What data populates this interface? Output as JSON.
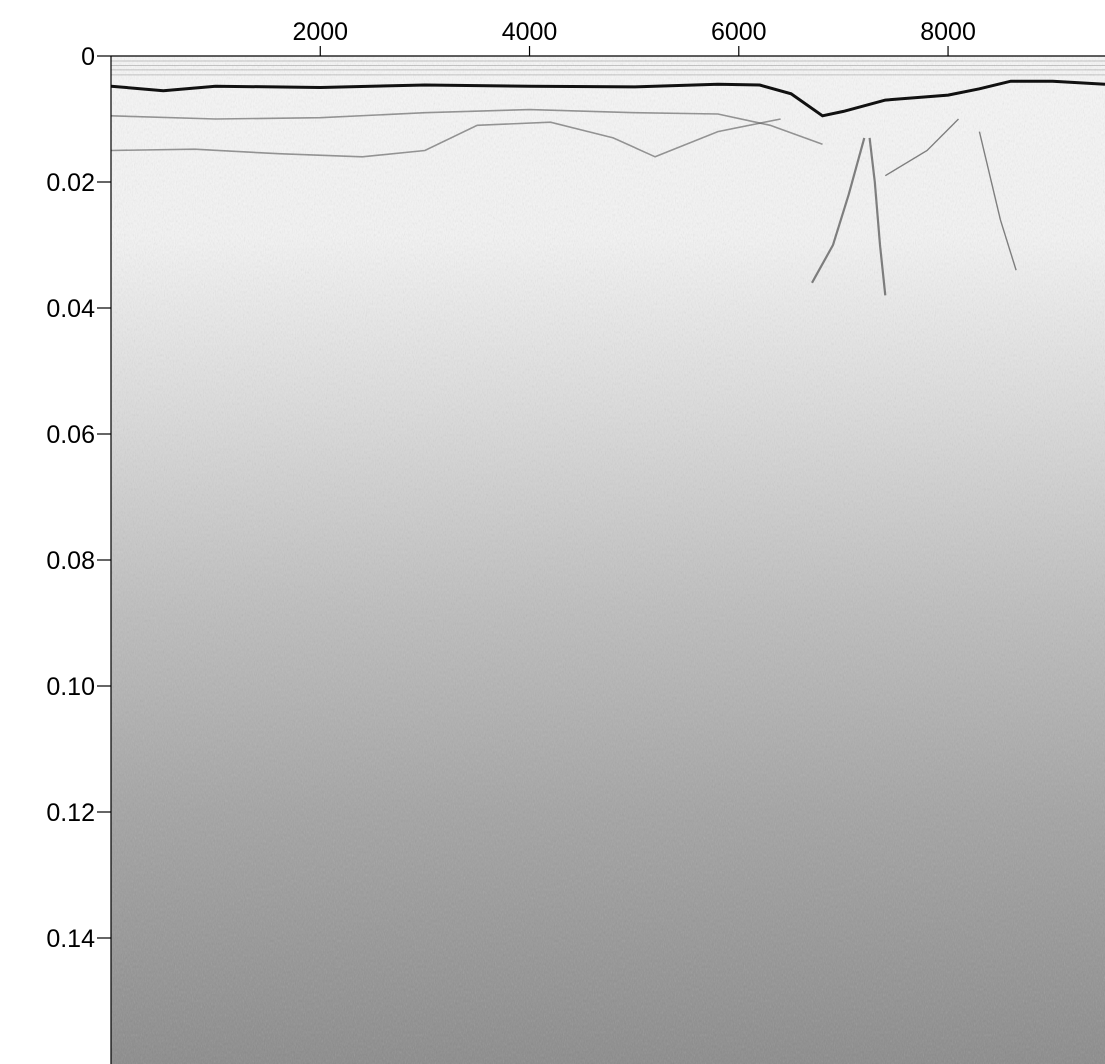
{
  "chart_data": {
    "type": "heatmap",
    "title": "",
    "xlabel": "",
    "ylabel": "",
    "xlim": [
      0,
      9500
    ],
    "ylim": [
      0,
      0.16
    ],
    "x_axis_position": "top",
    "y_axis_inverted": true,
    "grid": false,
    "legend": "none",
    "colormap": "grayscale",
    "x_ticks": [
      {
        "value": 2000,
        "label": "2000"
      },
      {
        "value": 4000,
        "label": "4000"
      },
      {
        "value": 6000,
        "label": "6000"
      },
      {
        "value": 8000,
        "label": "8000"
      }
    ],
    "y_ticks": [
      {
        "value": 0,
        "label": "0"
      },
      {
        "value": 0.02,
        "label": "0.02"
      },
      {
        "value": 0.04,
        "label": "0.04"
      },
      {
        "value": 0.06,
        "label": "0.06"
      },
      {
        "value": 0.08,
        "label": "0.08"
      },
      {
        "value": 0.1,
        "label": "0.10"
      },
      {
        "value": 0.12,
        "label": "0.12"
      },
      {
        "value": 0.14,
        "label": "0.14"
      }
    ],
    "surface_reflector": {
      "x": [
        0,
        500,
        1000,
        2000,
        3000,
        4000,
        5000,
        5800,
        6200,
        6500,
        6800,
        7000,
        7400,
        8000,
        8300,
        8600,
        9000,
        9500
      ],
      "y": [
        0.0048,
        0.0055,
        0.0048,
        0.005,
        0.0046,
        0.0048,
        0.0049,
        0.0045,
        0.0046,
        0.006,
        0.0095,
        0.0088,
        0.007,
        0.0062,
        0.0052,
        0.004,
        0.004,
        0.0045
      ]
    },
    "subsurface_layers": [
      {
        "x": [
          0,
          1000,
          2000,
          3000,
          4000,
          5000,
          5800,
          6300,
          6800
        ],
        "y": [
          0.0095,
          0.01,
          0.0098,
          0.009,
          0.0085,
          0.009,
          0.0092,
          0.011,
          0.014
        ]
      },
      {
        "x": [
          0,
          800,
          1600,
          2400,
          3000,
          3500,
          4200,
          4800,
          5200,
          5800,
          6400
        ],
        "y": [
          0.015,
          0.0148,
          0.0155,
          0.016,
          0.015,
          0.011,
          0.0105,
          0.013,
          0.016,
          0.012,
          0.01
        ]
      }
    ],
    "diffraction_features": [
      {
        "x": [
          7200,
          7050,
          6900,
          6700
        ],
        "y": [
          0.013,
          0.022,
          0.03,
          0.036
        ]
      },
      {
        "x": [
          7250,
          7300,
          7350,
          7400
        ],
        "y": [
          0.013,
          0.02,
          0.03,
          0.038
        ]
      },
      {
        "x": [
          7400,
          7800,
          8100
        ],
        "y": [
          0.019,
          0.015,
          0.01
        ]
      },
      {
        "x": [
          8300,
          8500,
          8650
        ],
        "y": [
          0.012,
          0.026,
          0.034
        ]
      }
    ]
  }
}
